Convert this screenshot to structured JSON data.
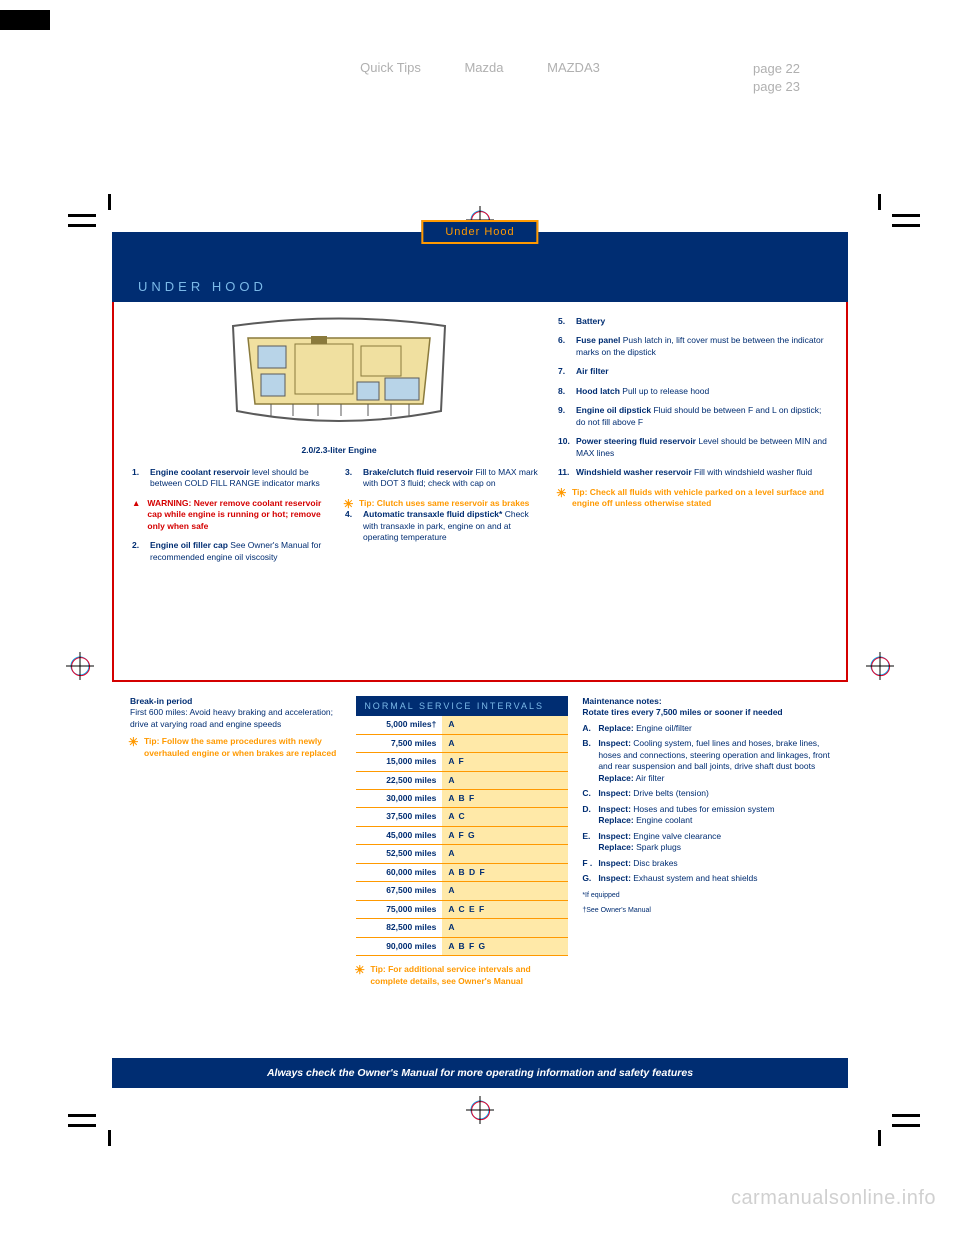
{
  "header": {
    "left": "Quick Tips",
    "brand": "Mazda",
    "model": "MAZDA3",
    "page1": "page 22",
    "page2": "page 23"
  },
  "tab": "Under Hood",
  "section_title": "UNDER HOOD",
  "engine_caption": "2.0/2.3-liter Engine",
  "engine": {
    "body_fill": "#f0e0a0",
    "body_stroke": "#8a7a3c",
    "fluid_fill": "#b8d4e8",
    "frame_stroke": "#5a5a5a"
  },
  "left_items": [
    {
      "n": "1.",
      "lead": "Engine coolant reservoir",
      "body": " level should be between COLD FILL RANGE indicator marks"
    },
    {
      "warn": true,
      "lead": "WARNING: Never remove coolant reservoir cap while engine is running or hot; remove only when safe"
    },
    {
      "n": "2.",
      "lead": "Engine oil filler cap",
      "body": " See Owner's Manual for recommended engine oil viscosity"
    }
  ],
  "mid_items": [
    {
      "n": "3.",
      "lead": "Brake/clutch fluid reservoir",
      "body": " Fill to MAX mark with DOT 3 fluid; check with cap on"
    },
    {
      "tip": true,
      "lead": "Tip: Clutch uses same reservoir as brakes"
    },
    {
      "n": "4.",
      "lead": "Automatic transaxle fluid dipstick*",
      "body": " Check with transaxle in park, engine on and at operating temperature"
    }
  ],
  "right_items": [
    {
      "n": "5.",
      "lead": "Battery",
      "body": ""
    },
    {
      "n": "6.",
      "lead": "Fuse panel",
      "body": " Push latch in, lift cover must be between the indicator marks on the dipstick"
    },
    {
      "n": "7.",
      "lead": "Air filter",
      "body": ""
    },
    {
      "n": "8.",
      "lead": "Hood latch",
      "body": " Pull up to release hood"
    },
    {
      "n": "9.",
      "lead": "Engine oil dipstick",
      "body": " Fluid should be between F and L on dipstick; do not fill above F"
    },
    {
      "n": "10.",
      "lead": "Power steering fluid reservoir",
      "body": " Level should be between MIN and MAX lines"
    },
    {
      "n": "11.",
      "lead": "Windshield washer reservoir",
      "body": " Fill with windshield washer fluid"
    },
    {
      "tip": true,
      "lead": "Tip: Check all fluids with vehicle parked on a level surface and engine off unless otherwise stated"
    }
  ],
  "lower_left": {
    "head": "Break-in period",
    "body": "First 600 miles: Avoid heavy braking and acceleration; drive at varying road and engine speeds",
    "tip": "Tip: Follow the same procedures with newly overhauled engine or when brakes are replaced"
  },
  "service": {
    "header": "NORMAL SERVICE INTERVALS",
    "rows": [
      {
        "miles": "5,000 miles†",
        "codes": "A"
      },
      {
        "miles": "7,500 miles",
        "codes": "A"
      },
      {
        "miles": "15,000 miles",
        "codes": "A        F"
      },
      {
        "miles": "22,500 miles",
        "codes": "A"
      },
      {
        "miles": "30,000 miles",
        "codes": "A  B     F"
      },
      {
        "miles": "37,500 miles",
        "codes": "A    C"
      },
      {
        "miles": "45,000 miles",
        "codes": "A        F G"
      },
      {
        "miles": "52,500 miles",
        "codes": "A"
      },
      {
        "miles": "60,000 miles",
        "codes": "A  B  D  F"
      },
      {
        "miles": "67,500 miles",
        "codes": "A"
      },
      {
        "miles": "75,000 miles",
        "codes": "A    C  E F"
      },
      {
        "miles": "82,500 miles",
        "codes": "A"
      },
      {
        "miles": "90,000 miles",
        "codes": "A  B     F G"
      }
    ],
    "tip": "Tip: For additional service intervals and complete details, see Owner's Manual"
  },
  "legend": {
    "head": "Maintenance notes:",
    "rotate": "Rotate tires every 7,500 miles or sooner if needed",
    "items": [
      {
        "l": "A.",
        "t": "Replace: Engine oil/filter"
      },
      {
        "l": "B.",
        "t": "Inspect: Cooling system, fuel lines and hoses, brake lines, hoses and connections, steering operation and linkages, front and rear suspension and ball joints, drive shaft dust boots\nReplace: Air filter"
      },
      {
        "l": "C.",
        "t": "Inspect: Drive belts (tension)"
      },
      {
        "l": "D.",
        "t": "Inspect: Hoses and tubes for emission system\nReplace: Engine coolant"
      },
      {
        "l": "E.",
        "t": "Inspect: Engine valve clearance\nReplace: Spark plugs"
      },
      {
        "l": "F .",
        "t": "Inspect: Disc brakes"
      },
      {
        "l": "G.",
        "t": "Inspect: Exhaust system and heat shields"
      }
    ],
    "note1": "*If equipped",
    "note2": "†See Owner's Manual"
  },
  "footer": "Always check the Owner's Manual for more operating information and safety features",
  "watermark": "carmanualsonline.info",
  "colors": {
    "blue": "#002d72",
    "lightblue": "#7bb9e8",
    "red": "#d40000",
    "orange": "#ff9900",
    "cream": "#ffe9a8"
  }
}
